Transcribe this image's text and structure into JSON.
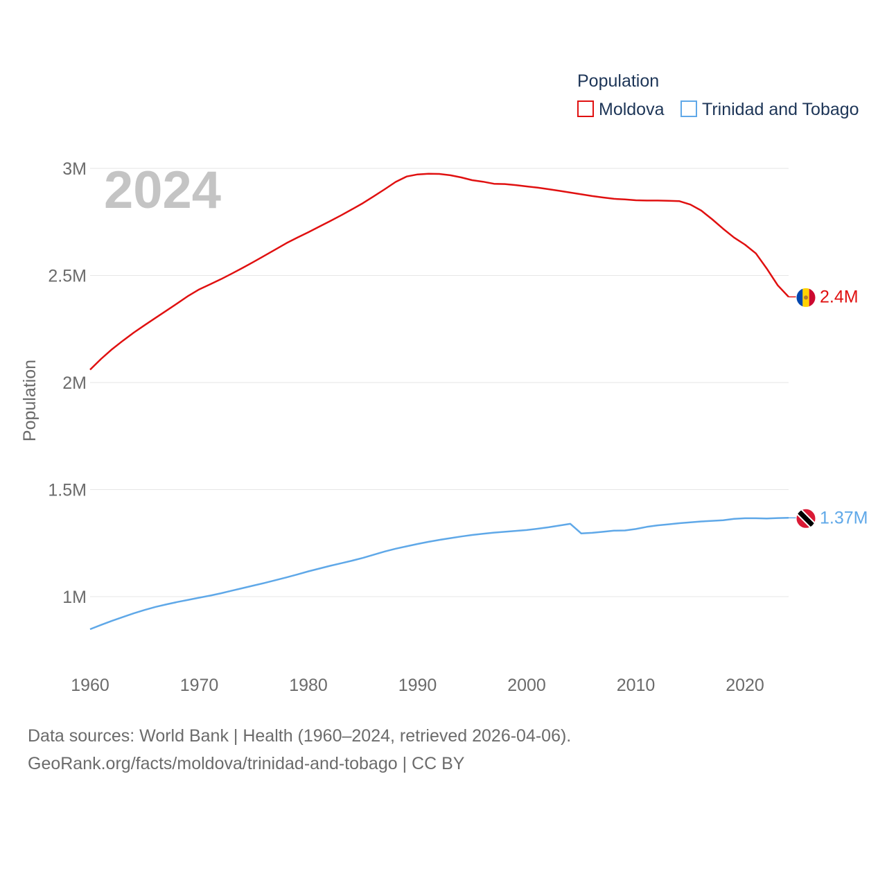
{
  "chart_data": {
    "type": "line",
    "year_label": "2024",
    "ylabel": "Population",
    "xlim": [
      1960,
      2024
    ],
    "ylim": [
      800000,
      3000000
    ],
    "x_ticks": [
      1960,
      1970,
      1980,
      1990,
      2000,
      2010,
      2020
    ],
    "x_tick_labels": [
      "1960",
      "1970",
      "1980",
      "1990",
      "2000",
      "2010",
      "2020"
    ],
    "y_ticks": [
      1000000,
      1500000,
      2000000,
      2500000,
      3000000
    ],
    "y_tick_labels": [
      "1M",
      "1.5M",
      "2M",
      "2.5M",
      "3M"
    ],
    "legend": {
      "title": "Population",
      "position": "top-right"
    },
    "x": [
      1960,
      1961,
      1962,
      1963,
      1964,
      1965,
      1966,
      1967,
      1968,
      1969,
      1970,
      1971,
      1972,
      1973,
      1974,
      1975,
      1976,
      1977,
      1978,
      1979,
      1980,
      1981,
      1982,
      1983,
      1984,
      1985,
      1986,
      1987,
      1988,
      1989,
      1990,
      1991,
      1992,
      1993,
      1994,
      1995,
      1996,
      1997,
      1998,
      1999,
      2000,
      2001,
      2002,
      2003,
      2004,
      2005,
      2006,
      2007,
      2008,
      2009,
      2010,
      2011,
      2012,
      2013,
      2014,
      2015,
      2016,
      2017,
      2018,
      2019,
      2020,
      2021,
      2022,
      2023,
      2024
    ],
    "series": [
      {
        "name": "Moldova",
        "color": "#e01010",
        "end_label": "2.4M",
        "flag": "moldova-flag-icon",
        "values": [
          2060000,
          2110000,
          2155000,
          2195000,
          2233000,
          2268000,
          2302000,
          2336000,
          2370000,
          2405000,
          2435000,
          2459000,
          2483000,
          2509000,
          2536000,
          2564000,
          2593000,
          2622000,
          2651000,
          2677000,
          2702000,
          2728000,
          2754000,
          2781000,
          2809000,
          2838000,
          2870000,
          2903000,
          2937000,
          2962000,
          2972000,
          2975000,
          2974000,
          2968000,
          2958000,
          2945000,
          2938000,
          2928000,
          2927000,
          2922000,
          2916000,
          2910000,
          2903000,
          2895000,
          2887000,
          2879000,
          2871000,
          2864000,
          2858000,
          2855000,
          2851000,
          2850000,
          2850000,
          2849000,
          2847000,
          2831000,
          2803000,
          2762000,
          2718000,
          2677000,
          2644000,
          2603000,
          2532000,
          2454000,
          2400000
        ]
      },
      {
        "name": "Trinidad and Tobago",
        "color": "#5fa8e8",
        "end_label": "1.37M",
        "flag": "trinidad-flag-icon",
        "values": [
          848000,
          868000,
          887000,
          905000,
          922000,
          938000,
          952000,
          964000,
          975000,
          985000,
          995000,
          1005000,
          1016000,
          1028000,
          1040000,
          1052000,
          1064000,
          1077000,
          1090000,
          1104000,
          1118000,
          1131000,
          1144000,
          1156000,
          1168000,
          1181000,
          1196000,
          1211000,
          1224000,
          1235000,
          1246000,
          1256000,
          1265000,
          1273000,
          1281000,
          1288000,
          1294000,
          1299000,
          1303000,
          1307000,
          1311000,
          1317000,
          1324000,
          1332000,
          1340000,
          1295000,
          1298000,
          1303000,
          1308000,
          1309000,
          1316000,
          1326000,
          1333000,
          1338000,
          1343000,
          1347000,
          1351000,
          1354000,
          1357000,
          1363000,
          1366000,
          1366000,
          1365000,
          1367000,
          1368000
        ]
      }
    ]
  },
  "footer": {
    "source_line": "Data sources: World Bank | Health (1960–2024, retrieved 2026-04-06).",
    "credit_line": "GeoRank.org/facts/moldova/trinidad-and-tobago | CC BY"
  },
  "colors": {
    "grid": "#e6e6e6",
    "axis_text": "#6b6b6b",
    "year_watermark": "#c4c4c4",
    "legend_text": "#1d3557"
  }
}
